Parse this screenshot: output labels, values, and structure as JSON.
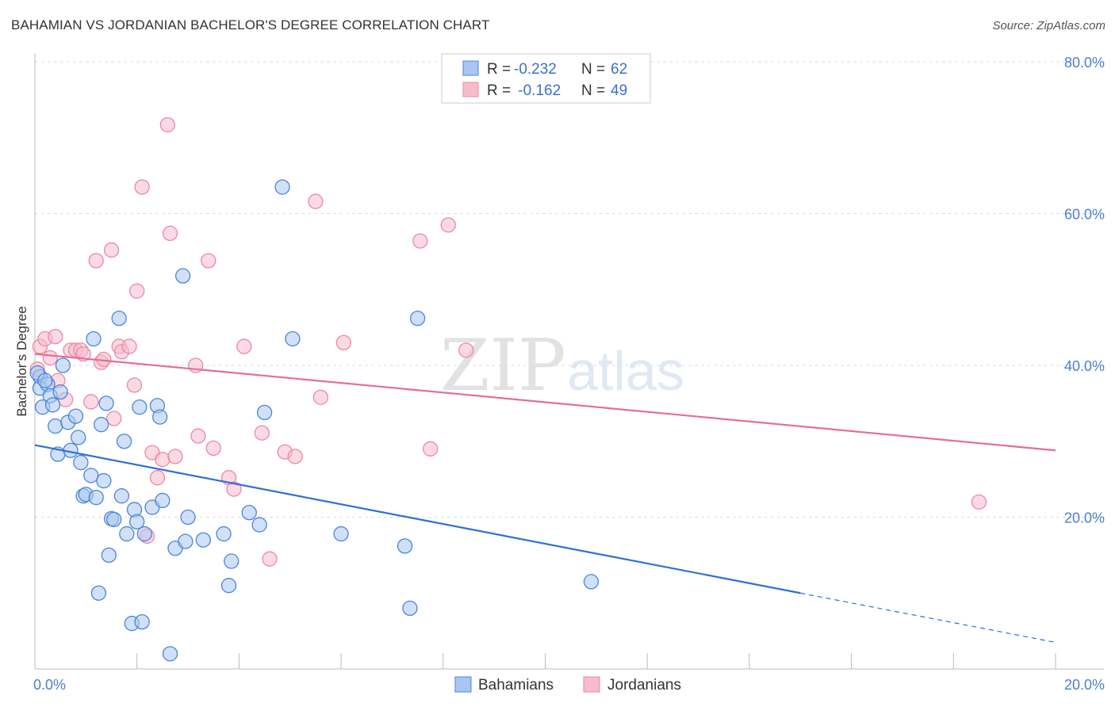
{
  "title": "BAHAMIAN VS JORDANIAN BACHELOR'S DEGREE CORRELATION CHART",
  "source": "Source: ZipAtlas.com",
  "watermark": {
    "zip": "ZIP",
    "atlas": "atlas"
  },
  "colors": {
    "blue_fill": "#a9c6f0",
    "blue_stroke": "#4a86d8",
    "blue_line": "#2f6fd6",
    "pink_fill": "#f7bccc",
    "pink_stroke": "#ea88a5",
    "pink_line": "#e56d95",
    "tick_text": "#4a7fd0",
    "grid": "#dddddd"
  },
  "legend": {
    "rows": [
      {
        "r_label": "R = ",
        "r_value": "-0.232",
        "n_label": "N = ",
        "n_value": "62",
        "series": "blue"
      },
      {
        "r_label": "R = ",
        "r_value": " -0.162",
        "n_label": "N = ",
        "n_value": "49",
        "series": "pink"
      }
    ]
  },
  "chart_data": {
    "type": "scatter",
    "title": "BAHAMIAN VS JORDANIAN BACHELOR'S DEGREE CORRELATION CHART",
    "xlabel": "",
    "ylabel": "Bachelor's Degree",
    "xlim": [
      0,
      20
    ],
    "ylim": [
      0,
      80
    ],
    "x_tick_labels": [
      {
        "value": 0,
        "label": "0.0%"
      },
      {
        "value": 20,
        "label": "20.0%"
      }
    ],
    "y_tick_labels": [
      {
        "value": 20,
        "label": "20.0%"
      },
      {
        "value": 40,
        "label": "40.0%"
      },
      {
        "value": 60,
        "label": "60.0%"
      },
      {
        "value": 80,
        "label": "80.0%"
      }
    ],
    "x_minor_ticks": [
      0,
      2,
      4,
      6,
      8,
      10,
      12,
      14,
      16,
      18,
      20
    ],
    "grid": true,
    "legend_position": "top-center",
    "series": [
      {
        "name": "Bahamians",
        "color": "blue",
        "trend": {
          "x0": 0,
          "y0": 29.5,
          "x1": 15,
          "y1": 10.0,
          "dash_to_x": 20,
          "dash_to_y": 3.5
        },
        "points": [
          [
            0.1,
            38.5
          ],
          [
            0.1,
            37.0
          ],
          [
            0.15,
            34.5
          ],
          [
            0.25,
            37.5
          ],
          [
            0.3,
            36.0
          ],
          [
            0.35,
            34.8
          ],
          [
            0.4,
            32.0
          ],
          [
            0.45,
            28.3
          ],
          [
            0.5,
            36.5
          ],
          [
            0.55,
            40.0
          ],
          [
            0.65,
            32.5
          ],
          [
            0.7,
            28.8
          ],
          [
            0.8,
            33.3
          ],
          [
            0.85,
            30.5
          ],
          [
            0.9,
            27.2
          ],
          [
            0.95,
            22.8
          ],
          [
            1.0,
            23.0
          ],
          [
            1.1,
            25.5
          ],
          [
            1.15,
            43.5
          ],
          [
            1.2,
            22.6
          ],
          [
            1.25,
            10.0
          ],
          [
            1.3,
            32.2
          ],
          [
            1.35,
            24.8
          ],
          [
            1.4,
            35.0
          ],
          [
            1.45,
            15.0
          ],
          [
            1.5,
            19.8
          ],
          [
            1.55,
            19.7
          ],
          [
            1.65,
            46.2
          ],
          [
            1.7,
            22.8
          ],
          [
            1.75,
            30.0
          ],
          [
            1.8,
            17.8
          ],
          [
            1.9,
            6.0
          ],
          [
            1.95,
            21.0
          ],
          [
            2.0,
            19.4
          ],
          [
            2.05,
            34.5
          ],
          [
            2.1,
            6.2
          ],
          [
            2.15,
            17.8
          ],
          [
            2.3,
            21.3
          ],
          [
            2.4,
            34.7
          ],
          [
            2.45,
            33.2
          ],
          [
            2.5,
            22.2
          ],
          [
            2.65,
            2.0
          ],
          [
            2.75,
            15.9
          ],
          [
            2.9,
            51.8
          ],
          [
            2.95,
            16.8
          ],
          [
            3.0,
            20.0
          ],
          [
            3.3,
            17.0
          ],
          [
            3.7,
            17.8
          ],
          [
            3.8,
            11.0
          ],
          [
            3.85,
            14.2
          ],
          [
            4.2,
            20.6
          ],
          [
            4.4,
            19.0
          ],
          [
            4.5,
            33.8
          ],
          [
            4.85,
            63.5
          ],
          [
            5.05,
            43.5
          ],
          [
            6.0,
            17.8
          ],
          [
            7.25,
            16.2
          ],
          [
            7.35,
            8.0
          ],
          [
            7.5,
            46.2
          ],
          [
            10.9,
            11.5
          ],
          [
            0.05,
            39.0
          ],
          [
            0.2,
            38.0
          ]
        ]
      },
      {
        "name": "Jordanians",
        "color": "pink",
        "trend": {
          "x0": 0,
          "y0": 41.5,
          "x1": 20,
          "y1": 28.8
        },
        "points": [
          [
            0.05,
            39.5
          ],
          [
            0.1,
            42.5
          ],
          [
            0.2,
            43.5
          ],
          [
            0.3,
            41.0
          ],
          [
            0.4,
            43.8
          ],
          [
            0.45,
            38.0
          ],
          [
            0.6,
            35.5
          ],
          [
            0.7,
            42.0
          ],
          [
            0.8,
            42.0
          ],
          [
            0.9,
            42.0
          ],
          [
            0.95,
            41.5
          ],
          [
            1.1,
            35.2
          ],
          [
            1.2,
            53.8
          ],
          [
            1.3,
            40.4
          ],
          [
            1.35,
            40.8
          ],
          [
            1.5,
            55.2
          ],
          [
            1.55,
            33.0
          ],
          [
            1.65,
            42.5
          ],
          [
            1.7,
            41.8
          ],
          [
            1.85,
            42.5
          ],
          [
            1.95,
            37.4
          ],
          [
            2.0,
            49.8
          ],
          [
            2.1,
            63.5
          ],
          [
            2.2,
            17.5
          ],
          [
            2.3,
            28.5
          ],
          [
            2.4,
            25.2
          ],
          [
            2.5,
            27.6
          ],
          [
            2.6,
            71.7
          ],
          [
            2.65,
            57.4
          ],
          [
            2.75,
            28.0
          ],
          [
            3.15,
            40.0
          ],
          [
            3.2,
            30.7
          ],
          [
            3.4,
            53.8
          ],
          [
            3.5,
            29.1
          ],
          [
            3.8,
            25.2
          ],
          [
            3.9,
            23.7
          ],
          [
            4.1,
            42.5
          ],
          [
            4.45,
            31.1
          ],
          [
            4.6,
            14.5
          ],
          [
            4.9,
            28.6
          ],
          [
            5.1,
            28.0
          ],
          [
            5.5,
            61.6
          ],
          [
            5.6,
            35.8
          ],
          [
            6.05,
            43.0
          ],
          [
            7.55,
            56.4
          ],
          [
            7.75,
            29.0
          ],
          [
            8.1,
            58.5
          ],
          [
            8.45,
            42.0
          ],
          [
            18.5,
            22.0
          ]
        ]
      }
    ]
  },
  "bottom_legend": {
    "blue_label": "Bahamians",
    "pink_label": "Jordanians"
  }
}
